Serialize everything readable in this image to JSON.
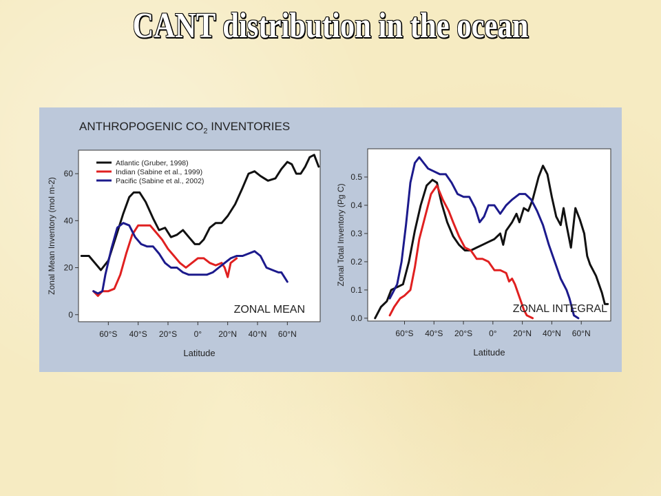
{
  "slide": {
    "title": "CANT distribution in the ocean"
  },
  "figure": {
    "heading_main": "ANTHROPOGENIC CO",
    "heading_sub": "2",
    "heading_tail": " INVENTORIES"
  },
  "colors": {
    "atlantic": "#111111",
    "indian": "#e02020",
    "pacific": "#1c1a8c",
    "panel_bg": "#bcc8da",
    "slide_bg": "#f6ebc2"
  },
  "chart_data": [
    {
      "type": "line",
      "panel_label": "ZONAL MEAN",
      "xlabel": "Latitude",
      "ylabel": "Zonal Mean Inventory (mol m-2)",
      "x_ticks": [
        -60,
        -40,
        -20,
        0,
        20,
        40,
        60
      ],
      "x_tick_labels": [
        "60°S",
        "40°S",
        "20°S",
        "0°",
        "20°N",
        "40°N",
        "60°N"
      ],
      "y_ticks": [
        0,
        20,
        40,
        60
      ],
      "y_tick_labels": [
        "0",
        "20",
        "40",
        "60"
      ],
      "xlim": [
        -80,
        82
      ],
      "ylim": [
        -3,
        70
      ],
      "legend": [
        "Atlantic (Gruber, 1998)",
        "Indian (Sabine et al., 1999)",
        "Pacific (Sabine et al., 2002)"
      ],
      "series": [
        {
          "name": "Atlantic (Gruber, 1998)",
          "points": [
            [
              -78,
              25
            ],
            [
              -73,
              25
            ],
            [
              -69,
              22
            ],
            [
              -65,
              19
            ],
            [
              -60,
              23
            ],
            [
              -55,
              33
            ],
            [
              -50,
              43
            ],
            [
              -46,
              50
            ],
            [
              -43,
              52
            ],
            [
              -39,
              52
            ],
            [
              -35,
              48
            ],
            [
              -30,
              41
            ],
            [
              -26,
              36
            ],
            [
              -22,
              37
            ],
            [
              -18,
              33
            ],
            [
              -14,
              34
            ],
            [
              -10,
              36
            ],
            [
              -6,
              33
            ],
            [
              -2,
              30
            ],
            [
              1,
              30
            ],
            [
              4,
              32
            ],
            [
              8,
              37
            ],
            [
              12,
              39
            ],
            [
              16,
              39
            ],
            [
              20,
              42
            ],
            [
              25,
              47
            ],
            [
              30,
              54
            ],
            [
              34,
              60
            ],
            [
              38,
              61
            ],
            [
              42,
              59
            ],
            [
              47,
              57
            ],
            [
              52,
              58
            ],
            [
              56,
              62
            ],
            [
              60,
              65
            ],
            [
              63,
              64
            ],
            [
              66,
              60
            ],
            [
              69,
              60
            ],
            [
              72,
              63
            ],
            [
              75,
              67
            ],
            [
              78,
              68
            ],
            [
              81,
              63
            ]
          ]
        },
        {
          "name": "Indian (Sabine et al., 1999)",
          "points": [
            [
              -70,
              10
            ],
            [
              -67,
              8
            ],
            [
              -64,
              10
            ],
            [
              -60,
              10
            ],
            [
              -56,
              11
            ],
            [
              -52,
              17
            ],
            [
              -48,
              26
            ],
            [
              -44,
              34
            ],
            [
              -40,
              38
            ],
            [
              -36,
              38
            ],
            [
              -32,
              38
            ],
            [
              -28,
              35
            ],
            [
              -24,
              32
            ],
            [
              -20,
              28
            ],
            [
              -16,
              25
            ],
            [
              -12,
              22
            ],
            [
              -8,
              20
            ],
            [
              -4,
              22
            ],
            [
              0,
              24
            ],
            [
              4,
              24
            ],
            [
              8,
              22
            ],
            [
              12,
              21
            ],
            [
              16,
              22
            ],
            [
              18,
              20
            ],
            [
              20,
              16
            ],
            [
              22,
              22
            ],
            [
              26,
              24
            ]
          ]
        },
        {
          "name": "Pacific (Sabine et al., 2002)",
          "points": [
            [
              -70,
              10
            ],
            [
              -67,
              9
            ],
            [
              -64,
              10
            ],
            [
              -62,
              17
            ],
            [
              -58,
              28
            ],
            [
              -54,
              37
            ],
            [
              -50,
              39
            ],
            [
              -46,
              38
            ],
            [
              -42,
              33
            ],
            [
              -38,
              30
            ],
            [
              -34,
              29
            ],
            [
              -30,
              29
            ],
            [
              -26,
              26
            ],
            [
              -22,
              22
            ],
            [
              -18,
              20
            ],
            [
              -14,
              20
            ],
            [
              -10,
              18
            ],
            [
              -6,
              17
            ],
            [
              -2,
              17
            ],
            [
              2,
              17
            ],
            [
              6,
              17
            ],
            [
              10,
              18
            ],
            [
              14,
              20
            ],
            [
              18,
              22
            ],
            [
              22,
              24
            ],
            [
              26,
              25
            ],
            [
              30,
              25
            ],
            [
              34,
              26
            ],
            [
              38,
              27
            ],
            [
              42,
              25
            ],
            [
              46,
              20
            ],
            [
              50,
              19
            ],
            [
              54,
              18
            ],
            [
              56,
              18
            ],
            [
              58,
              16
            ],
            [
              60,
              14
            ]
          ]
        }
      ]
    },
    {
      "type": "line",
      "panel_label": "ZONAL INTEGRAL",
      "xlabel": "Latitude",
      "ylabel": "Zonal Total Inventory (Pg C)",
      "x_ticks": [
        -60,
        -40,
        -20,
        0,
        20,
        40,
        60
      ],
      "x_tick_labels": [
        "60°S",
        "40°S",
        "20°S",
        "0°",
        "20°N",
        "40°N",
        "60°N"
      ],
      "y_ticks": [
        0.0,
        0.1,
        0.2,
        0.3,
        0.4,
        0.5
      ],
      "y_tick_labels": [
        "0.0",
        "0.1",
        "0.2",
        "0.3",
        "0.4",
        "0.5"
      ],
      "xlim": [
        -85,
        80
      ],
      "ylim": [
        -0.01,
        0.6
      ],
      "series": [
        {
          "name": "Atlantic (Gruber, 1998)",
          "points": [
            [
              -80,
              0
            ],
            [
              -76,
              0.04
            ],
            [
              -72,
              0.06
            ],
            [
              -69,
              0.1
            ],
            [
              -65,
              0.11
            ],
            [
              -61,
              0.12
            ],
            [
              -57,
              0.2
            ],
            [
              -53,
              0.31
            ],
            [
              -49,
              0.4
            ],
            [
              -45,
              0.47
            ],
            [
              -41,
              0.49
            ],
            [
              -38,
              0.48
            ],
            [
              -35,
              0.41
            ],
            [
              -31,
              0.34
            ],
            [
              -27,
              0.29
            ],
            [
              -23,
              0.26
            ],
            [
              -19,
              0.24
            ],
            [
              -15,
              0.24
            ],
            [
              -11,
              0.25
            ],
            [
              -7,
              0.26
            ],
            [
              -3,
              0.27
            ],
            [
              1,
              0.28
            ],
            [
              5,
              0.3
            ],
            [
              7,
              0.26
            ],
            [
              9,
              0.31
            ],
            [
              13,
              0.34
            ],
            [
              16,
              0.37
            ],
            [
              18,
              0.34
            ],
            [
              21,
              0.39
            ],
            [
              24,
              0.38
            ],
            [
              27,
              0.42
            ],
            [
              31,
              0.5
            ],
            [
              34,
              0.54
            ],
            [
              37,
              0.51
            ],
            [
              40,
              0.43
            ],
            [
              43,
              0.36
            ],
            [
              46,
              0.33
            ],
            [
              48,
              0.39
            ],
            [
              50,
              0.33
            ],
            [
              53,
              0.25
            ],
            [
              56,
              0.39
            ],
            [
              59,
              0.35
            ],
            [
              62,
              0.3
            ],
            [
              64,
              0.22
            ],
            [
              66,
              0.19
            ],
            [
              68,
              0.17
            ],
            [
              70,
              0.15
            ],
            [
              72,
              0.12
            ],
            [
              74,
              0.09
            ],
            [
              76,
              0.05
            ],
            [
              78,
              0.05
            ]
          ]
        },
        {
          "name": "Indian (Sabine et al., 1999)",
          "points": [
            [
              -70,
              0.01
            ],
            [
              -67,
              0.04
            ],
            [
              -63,
              0.07
            ],
            [
              -60,
              0.08
            ],
            [
              -56,
              0.1
            ],
            [
              -53,
              0.18
            ],
            [
              -50,
              0.28
            ],
            [
              -46,
              0.36
            ],
            [
              -42,
              0.44
            ],
            [
              -38,
              0.47
            ],
            [
              -34,
              0.42
            ],
            [
              -30,
              0.38
            ],
            [
              -27,
              0.34
            ],
            [
              -23,
              0.29
            ],
            [
              -19,
              0.25
            ],
            [
              -15,
              0.24
            ],
            [
              -11,
              0.21
            ],
            [
              -7,
              0.21
            ],
            [
              -3,
              0.2
            ],
            [
              1,
              0.17
            ],
            [
              5,
              0.17
            ],
            [
              9,
              0.16
            ],
            [
              11,
              0.13
            ],
            [
              13,
              0.14
            ],
            [
              15,
              0.12
            ],
            [
              17,
              0.09
            ],
            [
              19,
              0.06
            ],
            [
              21,
              0.03
            ],
            [
              23,
              0.01
            ],
            [
              27,
              0
            ]
          ]
        },
        {
          "name": "Pacific (Sabine et al., 2002)",
          "points": [
            [
              -70,
              0.07
            ],
            [
              -67,
              0.1
            ],
            [
              -65,
              0.12
            ],
            [
              -62,
              0.2
            ],
            [
              -59,
              0.33
            ],
            [
              -56,
              0.48
            ],
            [
              -53,
              0.55
            ],
            [
              -50,
              0.57
            ],
            [
              -47,
              0.55
            ],
            [
              -44,
              0.53
            ],
            [
              -40,
              0.52
            ],
            [
              -36,
              0.51
            ],
            [
              -32,
              0.51
            ],
            [
              -28,
              0.48
            ],
            [
              -24,
              0.44
            ],
            [
              -20,
              0.43
            ],
            [
              -16,
              0.43
            ],
            [
              -12,
              0.39
            ],
            [
              -9,
              0.34
            ],
            [
              -6,
              0.36
            ],
            [
              -3,
              0.4
            ],
            [
              1,
              0.4
            ],
            [
              5,
              0.37
            ],
            [
              9,
              0.4
            ],
            [
              13,
              0.42
            ],
            [
              18,
              0.44
            ],
            [
              22,
              0.44
            ],
            [
              26,
              0.42
            ],
            [
              30,
              0.38
            ],
            [
              34,
              0.33
            ],
            [
              38,
              0.26
            ],
            [
              42,
              0.2
            ],
            [
              46,
              0.14
            ],
            [
              50,
              0.1
            ],
            [
              52,
              0.07
            ],
            [
              55,
              0.01
            ],
            [
              58,
              0
            ]
          ]
        }
      ]
    }
  ]
}
